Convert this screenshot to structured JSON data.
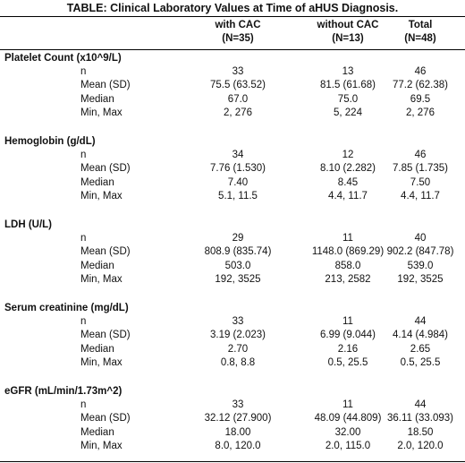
{
  "title": "TABLE: Clinical Laboratory Values at Time of aHUS Diagnosis.",
  "columns": [
    {
      "name": "with CAC",
      "n": "(N=35)"
    },
    {
      "name": "without CAC",
      "n": "(N=13)"
    },
    {
      "name": "Total",
      "n": "(N=48)"
    }
  ],
  "sections": [
    {
      "label": "Platelet Count (x10^9/L)",
      "rows": [
        {
          "stat": "n",
          "values": [
            "33",
            "13",
            "46"
          ]
        },
        {
          "stat": "Mean (SD)",
          "values": [
            "75.5 (63.52)",
            "81.5 (61.68)",
            "77.2 (62.38)"
          ]
        },
        {
          "stat": "Median",
          "values": [
            "67.0",
            "75.0",
            "69.5"
          ]
        },
        {
          "stat": "Min, Max",
          "values": [
            "2, 276",
            "5, 224",
            "2, 276"
          ]
        }
      ]
    },
    {
      "label": "Hemoglobin (g/dL)",
      "rows": [
        {
          "stat": "n",
          "values": [
            "34",
            "12",
            "46"
          ]
        },
        {
          "stat": "Mean (SD)",
          "values": [
            "7.76 (1.530)",
            "8.10 (2.282)",
            "7.85 (1.735)"
          ]
        },
        {
          "stat": "Median",
          "values": [
            "7.40",
            "8.45",
            "7.50"
          ]
        },
        {
          "stat": "Min, Max",
          "values": [
            "5.1, 11.5",
            "4.4, 11.7",
            "4.4, 11.7"
          ]
        }
      ]
    },
    {
      "label": "LDH (U/L)",
      "rows": [
        {
          "stat": "n",
          "values": [
            "29",
            "11",
            "40"
          ]
        },
        {
          "stat": "Mean (SD)",
          "values": [
            "808.9 (835.74)",
            "1148.0 (869.29)",
            "902.2 (847.78)"
          ]
        },
        {
          "stat": "Median",
          "values": [
            "503.0",
            "858.0",
            "539.0"
          ]
        },
        {
          "stat": "Min, Max",
          "values": [
            "192, 3525",
            "213, 2582",
            "192, 3525"
          ]
        }
      ]
    },
    {
      "label": "Serum creatinine (mg/dL)",
      "rows": [
        {
          "stat": "n",
          "values": [
            "33",
            "11",
            "44"
          ]
        },
        {
          "stat": "Mean (SD)",
          "values": [
            "3.19 (2.023)",
            "6.99 (9.044)",
            "4.14 (4.984)"
          ]
        },
        {
          "stat": "Median",
          "values": [
            "2.70",
            "2.16",
            "2.65"
          ]
        },
        {
          "stat": "Min, Max",
          "values": [
            "0.8, 8.8",
            "0.5, 25.5",
            "0.5, 25.5"
          ]
        }
      ]
    },
    {
      "label": "eGFR (mL/min/1.73m^2)",
      "rows": [
        {
          "stat": "n",
          "values": [
            "33",
            "11",
            "44"
          ]
        },
        {
          "stat": "Mean (SD)",
          "values": [
            "32.12 (27.900)",
            "48.09 (44.809)",
            "36.11 (33.093)"
          ]
        },
        {
          "stat": "Median",
          "values": [
            "18.00",
            "32.00",
            "18.50"
          ]
        },
        {
          "stat": "Min, Max",
          "values": [
            "8.0, 120.0",
            "2.0, 115.0",
            "2.0, 120.0"
          ]
        }
      ]
    }
  ]
}
